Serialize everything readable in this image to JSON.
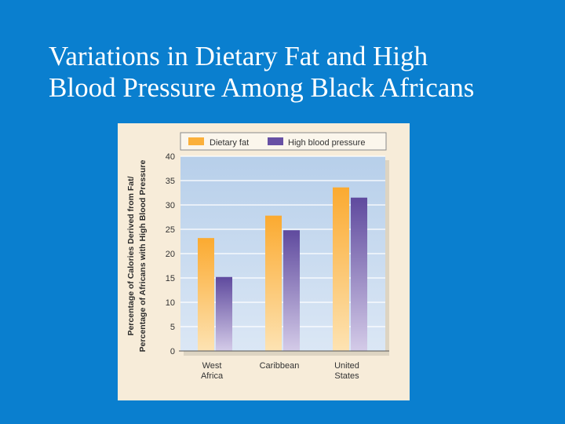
{
  "slide": {
    "title_line1": "Variations in Dietary Fat and High",
    "title_line2": "Blood Pressure Among Black Africans"
  },
  "colors": {
    "background": "#0a7fcf",
    "card": "#f7ecd9",
    "plot": "#c9dcf0",
    "fat": "#fbb03b",
    "bp": "#6750a4"
  },
  "chart_data": {
    "type": "bar",
    "title": "",
    "ylabel_line1": "Percentage of Calories Derived from Fat/",
    "ylabel_line2": "Percentage of Africans with High Blood Pressure",
    "xlabel": "",
    "ylim": [
      0,
      40
    ],
    "yticks": [
      0,
      5,
      10,
      15,
      20,
      25,
      30,
      35,
      40
    ],
    "grid": true,
    "legend_position": "top",
    "categories": [
      {
        "line1": "West",
        "line2": "Africa"
      },
      {
        "line1": "Caribbean",
        "line2": ""
      },
      {
        "line1": "United",
        "line2": "States"
      }
    ],
    "series": [
      {
        "name": "Dietary fat",
        "values": [
          23.2,
          27.8,
          33.6
        ]
      },
      {
        "name": "High blood pressure",
        "values": [
          15.2,
          24.8,
          31.5
        ]
      }
    ]
  }
}
